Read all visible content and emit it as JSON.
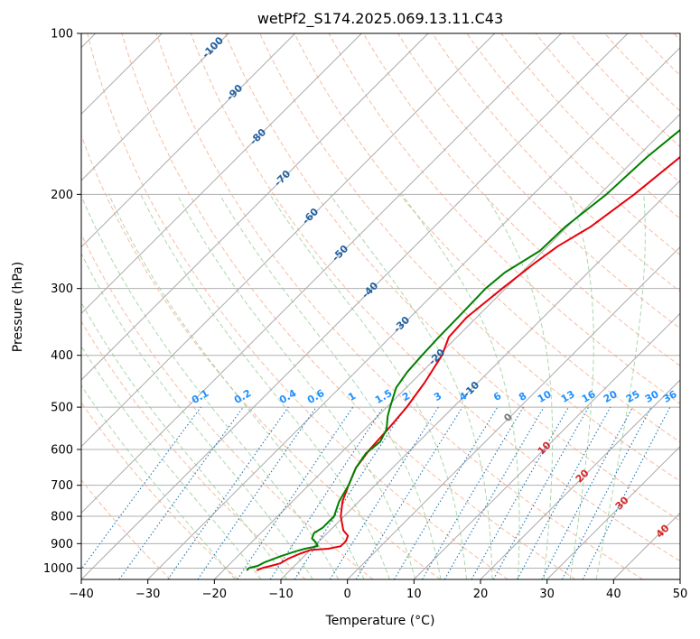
{
  "chart_data": {
    "type": "line",
    "title": "wetPf2_S174.2025.069.13.11.C43",
    "xlabel": "Temperature (°C)",
    "ylabel": "Pressure (hPa)",
    "xlim": [
      -40,
      50
    ],
    "ylim": [
      1050,
      100
    ],
    "y_scale": "log",
    "skew_angle_deg": 45,
    "x_ticks": [
      "−40",
      "−30",
      "−20",
      "−10",
      "0",
      "10",
      "20",
      "30",
      "40",
      "50"
    ],
    "x_tick_values": [
      -40,
      -30,
      -20,
      -10,
      0,
      10,
      20,
      30,
      40,
      50
    ],
    "y_ticks": [
      "1000",
      "900",
      "800",
      "700",
      "600",
      "500",
      "400",
      "300",
      "200",
      "100"
    ],
    "y_tick_values": [
      1000,
      900,
      800,
      700,
      600,
      500,
      400,
      300,
      200,
      100
    ],
    "grid": true,
    "colors": {
      "temperature": "#e8000b",
      "dewpoint": "#008000",
      "isotherm": "#aaaaaa",
      "dry_adiabat": "#f4a582",
      "moist_adiabat": "#8fc98f",
      "mixing_ratio": "#1f77b4",
      "mixing_label": "#1e90ff",
      "isotherm_label": "#1f5f9f",
      "theta_e_label": "#d62728",
      "theta_e_zero": "#777777"
    },
    "series": [
      {
        "key": "temperature",
        "points": [
          [
            1010,
            -15.0
          ],
          [
            1000,
            -14.5
          ],
          [
            990,
            -13.5
          ],
          [
            980,
            -12.5
          ],
          [
            960,
            -12.0
          ],
          [
            940,
            -11.0
          ],
          [
            925,
            -10.0
          ],
          [
            920,
            -7.5
          ],
          [
            910,
            -6.0
          ],
          [
            890,
            -6.0
          ],
          [
            870,
            -6.5
          ],
          [
            850,
            -8.0
          ],
          [
            800,
            -10.5
          ],
          [
            750,
            -12.5
          ],
          [
            700,
            -14.0
          ],
          [
            650,
            -15.5
          ],
          [
            600,
            -16.2
          ],
          [
            550,
            -16.5
          ],
          [
            500,
            -17.0
          ],
          [
            450,
            -18.0
          ],
          [
            400,
            -19.5
          ],
          [
            370,
            -21.2
          ],
          [
            340,
            -21.5
          ],
          [
            300,
            -20.5
          ],
          [
            270,
            -19.5
          ],
          [
            250,
            -18.5
          ],
          [
            230,
            -16.5
          ],
          [
            200,
            -14.8
          ],
          [
            170,
            -13.5
          ],
          [
            150,
            -12.2
          ],
          [
            130,
            -11.0
          ],
          [
            115,
            -9.3
          ],
          [
            100,
            -8.5
          ]
        ]
      },
      {
        "key": "dewpoint",
        "points": [
          [
            1010,
            -16.5
          ],
          [
            1000,
            -16.5
          ],
          [
            990,
            -15.5
          ],
          [
            975,
            -15.0
          ],
          [
            950,
            -13.5
          ],
          [
            930,
            -12.0
          ],
          [
            920,
            -11.0
          ],
          [
            910,
            -9.5
          ],
          [
            900,
            -10.0
          ],
          [
            880,
            -11.5
          ],
          [
            860,
            -12.0
          ],
          [
            840,
            -11.5
          ],
          [
            800,
            -11.5
          ],
          [
            750,
            -13.0
          ],
          [
            700,
            -14.0
          ],
          [
            650,
            -15.5
          ],
          [
            610,
            -16.2
          ],
          [
            580,
            -15.8
          ],
          [
            550,
            -16.7
          ],
          [
            520,
            -18.5
          ],
          [
            500,
            -19.5
          ],
          [
            460,
            -21.5
          ],
          [
            430,
            -22.2
          ],
          [
            400,
            -22.5
          ],
          [
            370,
            -22.7
          ],
          [
            340,
            -22.8
          ],
          [
            300,
            -23.0
          ],
          [
            280,
            -22.5
          ],
          [
            255,
            -20.5
          ],
          [
            230,
            -20.3
          ],
          [
            200,
            -19.0
          ],
          [
            170,
            -18.5
          ],
          [
            150,
            -17.5
          ],
          [
            130,
            -16.0
          ],
          [
            115,
            -14.2
          ],
          [
            100,
            -13.0
          ]
        ]
      }
    ],
    "isotherm_labels": [
      "-100",
      "-90",
      "-80",
      "-70",
      "-60",
      "-50",
      "-40",
      "-30",
      "-20",
      "-10"
    ],
    "isotherm_label_values": [
      -100,
      -90,
      -80,
      -70,
      -60,
      -50,
      -40,
      -30,
      -20,
      -10
    ],
    "mixing_ratio_labels": [
      "0.1",
      "0.2",
      "0.4",
      "0.6",
      "1",
      "1.5",
      "2",
      "3",
      "4",
      "6",
      "8",
      "10",
      "13",
      "16",
      "20",
      "25",
      "30",
      "36"
    ],
    "mixing_ratio_values": [
      0.1,
      0.2,
      0.4,
      0.6,
      1,
      1.5,
      2,
      3,
      4,
      6,
      8,
      10,
      13,
      16,
      20,
      25,
      30,
      36
    ],
    "theta_e_labels": [
      "0",
      "10",
      "20",
      "30",
      "40"
    ]
  }
}
